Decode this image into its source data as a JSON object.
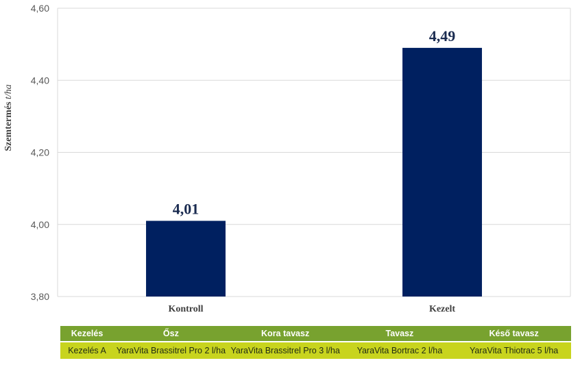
{
  "chart_data": {
    "type": "bar",
    "categories": [
      "Kontroll",
      "Kezelt"
    ],
    "values": [
      4.01,
      4.49
    ],
    "data_labels": [
      "4,01",
      "4,49"
    ],
    "ylabel": "Szemtermés",
    "ylabel_unit": "t/ha",
    "ylim": [
      3.8,
      4.6
    ],
    "yticks": [
      {
        "value": 3.8,
        "label": "3,80"
      },
      {
        "value": 4.0,
        "label": "4,00"
      },
      {
        "value": 4.2,
        "label": "4,20"
      },
      {
        "value": 4.4,
        "label": "4,40"
      },
      {
        "value": 4.6,
        "label": "4,60"
      }
    ],
    "grid": true,
    "bar_color": "#002060"
  },
  "table": {
    "headers": [
      "Kezelés",
      "Ősz",
      "Kora tavasz",
      "Tavasz",
      "Késő tavasz"
    ],
    "rows": [
      [
        "Kezelés A",
        "YaraVita Brassitrel Pro 2 l/ha",
        "YaraVita Brassitrel Pro 3 l/ha",
        "YaraVita Bortrac 2 l/ha",
        "YaraVita Thiotrac 5 l/ha"
      ]
    ],
    "header_color": "#78a22f",
    "row_color": "#c8d41e"
  }
}
